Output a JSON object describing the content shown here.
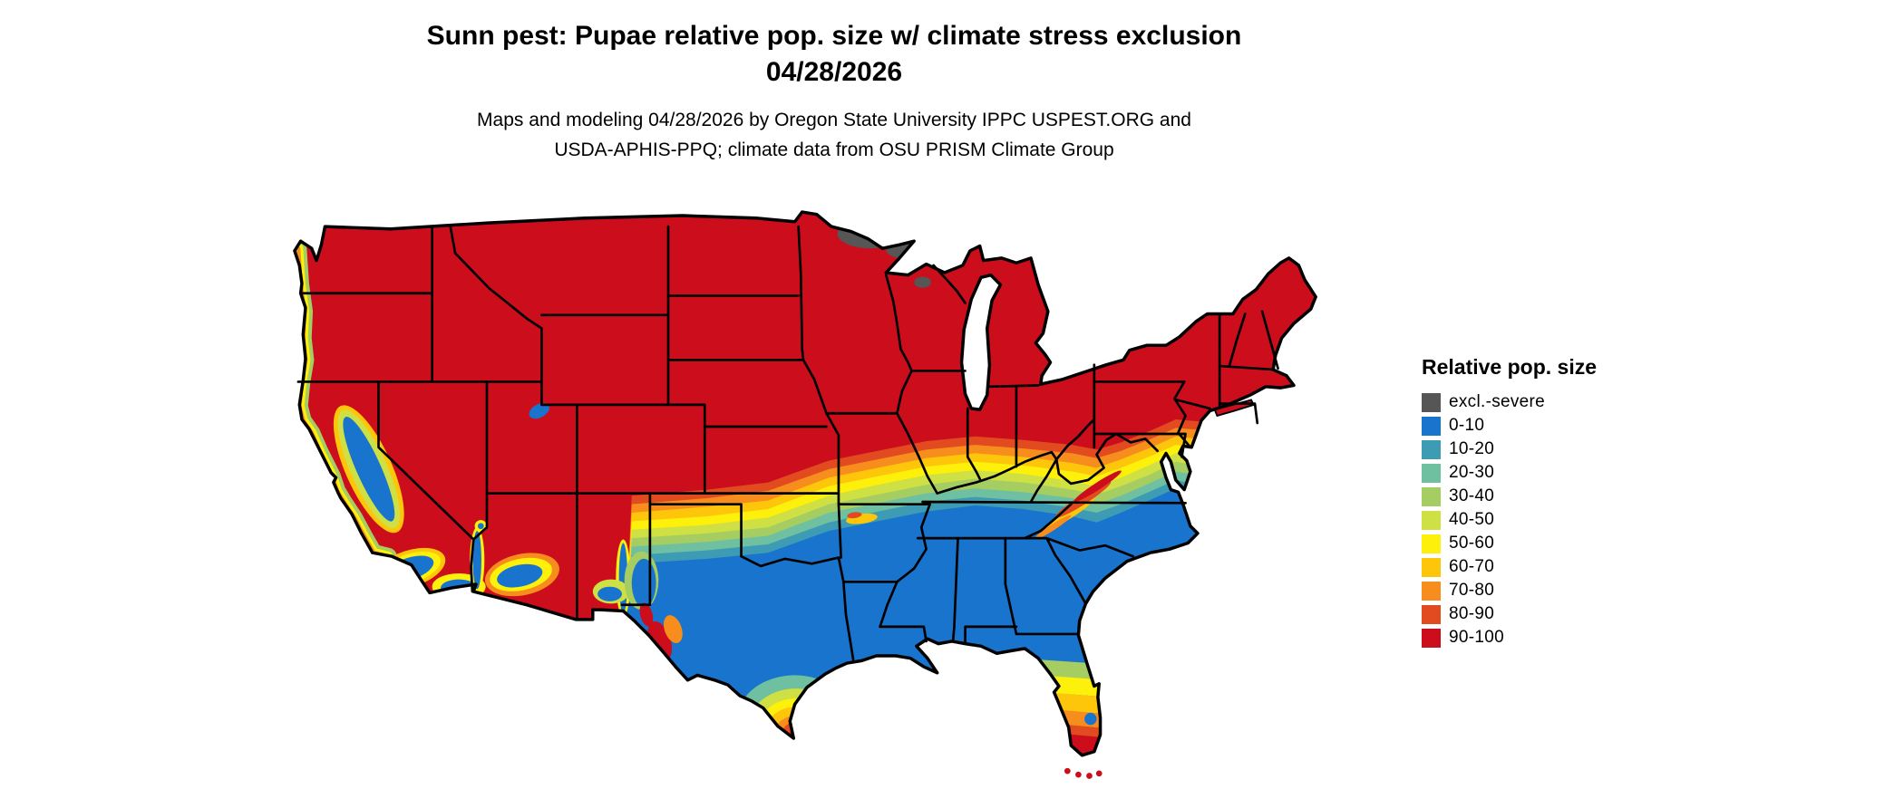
{
  "header": {
    "title_line1": "Sunn pest: Pupae relative pop. size w/ climate stress exclusion",
    "title_line2": "04/28/2026",
    "subtitle_line1": "Maps and modeling 04/28/2026 by Oregon State University IPPC USPEST.ORG and",
    "subtitle_line2": "USDA-APHIS-PPQ; climate data from OSU PRISM Climate Group"
  },
  "legend": {
    "title": "Relative pop. size",
    "entries": [
      {
        "label": "excl.-severe",
        "color": "#565656"
      },
      {
        "label": "0-10",
        "color": "#1874cd"
      },
      {
        "label": "10-20",
        "color": "#3d9cb4"
      },
      {
        "label": "20-30",
        "color": "#6fc0a0"
      },
      {
        "label": "30-40",
        "color": "#a5cd62"
      },
      {
        "label": "40-50",
        "color": "#cfe045"
      },
      {
        "label": "50-60",
        "color": "#fdf00a"
      },
      {
        "label": "60-70",
        "color": "#fdc60a"
      },
      {
        "label": "70-80",
        "color": "#f78d1d"
      },
      {
        "label": "80-90",
        "color": "#e14b1f"
      },
      {
        "label": "90-100",
        "color": "#cb0d1c"
      }
    ]
  },
  "map": {
    "background_color": "#ffffff",
    "border_color": "#000000",
    "water_color": "#ffffff"
  },
  "chart_data": {
    "type": "heatmap",
    "title": "Sunn pest: Pupae relative pop. size w/ climate stress exclusion",
    "date": "04/28/2026",
    "region": "Contiguous United States",
    "legend_title": "Relative pop. size",
    "legend_position": "right",
    "classes": [
      "excl.-severe",
      "0-10",
      "10-20",
      "20-30",
      "30-40",
      "40-50",
      "50-60",
      "60-70",
      "70-80",
      "80-90",
      "90-100"
    ],
    "spatial_pattern": [
      {
        "area": "Pacific Northwest, Rocky Mountains, northern Plains, upper Midwest, Great Lakes region, Northeast",
        "value": "90-100"
      },
      {
        "area": "Southern Plains, most of Texas, Gulf Coast states, Southeast, lower Mid-Atlantic coastal plain",
        "value": "0-10"
      },
      {
        "area": "East-west transition band through central Kansas, Missouri, southern Illinois/Indiana/Ohio, Virginia, Maryland and coastal New Jersey",
        "value": "10-90 gradient from south (low) to north (high)"
      },
      {
        "area": "Northeastern Minnesota and spots in northern Wisconsin",
        "value": "excl.-severe"
      },
      {
        "area": "California Central Valley, southern California coast, low deserts of Arizona, Rio Grande valley of New Mexico",
        "value": "0-10 cores with 40-80 fringes"
      },
      {
        "area": "Southern tip of Texas",
        "value": "concentric 20-100 gradient, 90-100 at the tip"
      },
      {
        "area": "Central and southern Florida",
        "value": "southward gradient 20-100, 90-100 at tip and Keys"
      },
      {
        "area": "Appalachian ridges in Virginia / West Virginia / North Carolina",
        "value": "60-100 streaks within 0-10 zone"
      }
    ]
  }
}
